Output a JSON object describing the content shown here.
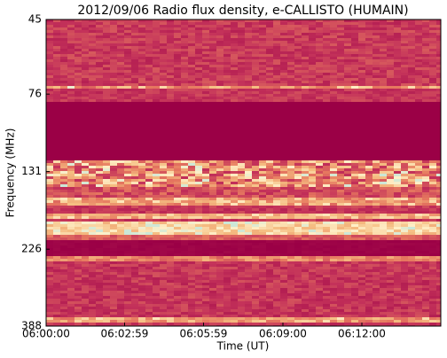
{
  "chart_data": {
    "type": "spectrogram",
    "title": "2012/09/06  Radio flux density, e-CALLISTO (HUMAIN)",
    "x_label": "Time (UT)",
    "y_label": "Frequency (MHz)",
    "xlim": [
      0,
      900
    ],
    "xticks": [
      {
        "value": 0,
        "label": "06:00:00"
      },
      {
        "value": 179,
        "label": "06:02:59"
      },
      {
        "value": 359,
        "label": "06:05:59"
      },
      {
        "value": 540,
        "label": "06:09:00"
      },
      {
        "value": 720,
        "label": "06:12:00"
      }
    ],
    "ylim": [
      45,
      388
    ],
    "yticks": [
      45,
      76,
      131,
      226,
      388
    ],
    "y_scale": "log",
    "y_inverted": true
  }
}
